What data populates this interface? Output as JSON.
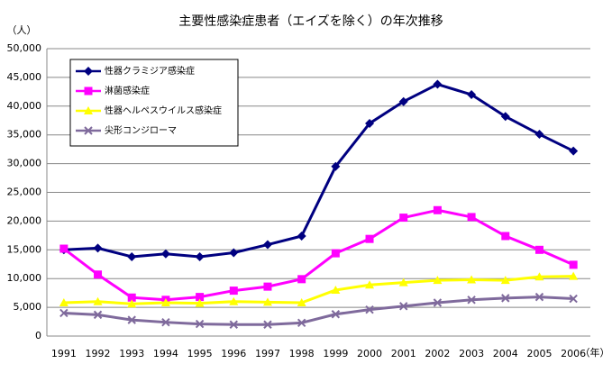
{
  "chart_data": {
    "type": "line",
    "title": "主要性感染症患者（エイズを除く）の年次推移",
    "y_unit": "（人）",
    "x_unit": "（年）",
    "categories": [
      "1991",
      "1992",
      "1993",
      "1994",
      "1995",
      "1996",
      "1997",
      "1998",
      "1999",
      "2000",
      "2001",
      "2002",
      "2003",
      "2004",
      "2005",
      "2006"
    ],
    "series": [
      {
        "name": "性器クラミジア感染症",
        "color": "#000080",
        "marker": "diamond",
        "values": [
          15000,
          15300,
          13800,
          14300,
          13800,
          14500,
          15900,
          17400,
          29500,
          37000,
          40800,
          43800,
          42000,
          38200,
          35100,
          32200
        ]
      },
      {
        "name": "淋菌感染症",
        "color": "#ff00ff",
        "marker": "square",
        "values": [
          15200,
          10700,
          6700,
          6300,
          6800,
          7900,
          8600,
          9900,
          14400,
          16900,
          20600,
          21900,
          20700,
          17400,
          15000,
          12400
        ]
      },
      {
        "name": "性器ヘルペスウイルス感染症",
        "color": "#ffff00",
        "marker": "triangle",
        "values": [
          5800,
          6000,
          5600,
          5800,
          5700,
          6000,
          5900,
          5800,
          8000,
          8900,
          9300,
          9700,
          9800,
          9700,
          10300,
          10400
        ]
      },
      {
        "name": "尖形コンジローマ",
        "color": "#7f6a9c",
        "marker": "x",
        "values": [
          4000,
          3700,
          2800,
          2400,
          2100,
          2000,
          2000,
          2300,
          3800,
          4600,
          5200,
          5800,
          6300,
          6600,
          6800,
          6500
        ]
      }
    ],
    "ylim": [
      0,
      50000
    ],
    "yticks": [
      0,
      {
        "value": 5000,
        "label": "5,000"
      },
      {
        "value": 10000,
        "label": "10,000"
      },
      {
        "value": 15000,
        "label": "15,000"
      },
      {
        "value": 20000,
        "label": "20,000"
      },
      {
        "value": 25000,
        "label": "25,000"
      },
      {
        "value": 30000,
        "label": "30,000"
      },
      {
        "value": 35000,
        "label": "35,000"
      },
      {
        "value": 40000,
        "label": "40,000"
      },
      {
        "value": 45000,
        "label": "45,000"
      },
      {
        "value": 50000,
        "label": "50,000"
      }
    ],
    "grid": true
  }
}
